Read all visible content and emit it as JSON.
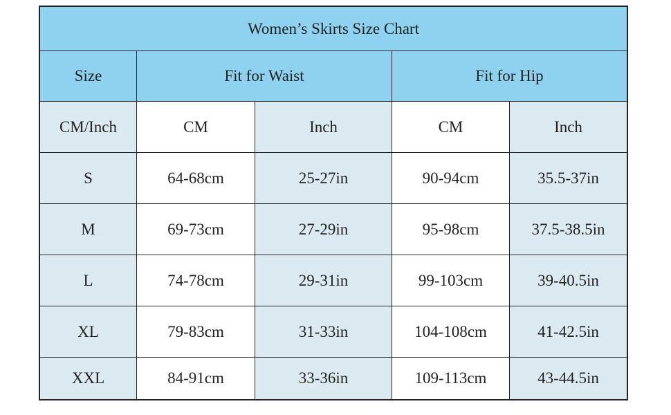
{
  "header": {
    "title": "Women’s Skirts Size Chart"
  },
  "table": {
    "groups": [
      "Size",
      "Fit for Waist",
      "Fit for Hip"
    ],
    "subheader": [
      "CM/Inch",
      "CM",
      "Inch",
      "CM",
      "Inch"
    ],
    "rows": [
      [
        "S",
        "64-68cm",
        "25-27in",
        "90-94cm",
        "35.5-37in"
      ],
      [
        "M",
        "69-73cm",
        "27-29in",
        "95-98cm",
        "37.5-38.5in"
      ],
      [
        "L",
        "74-78cm",
        "29-31in",
        "99-103cm",
        "39-40.5in"
      ],
      [
        "XL",
        "79-83cm",
        "31-33in",
        "104-108cm",
        "41-42.5in"
      ],
      [
        "XXL",
        "84-91cm",
        "33-36in",
        "109-113cm",
        "43-44.5in"
      ]
    ]
  }
}
